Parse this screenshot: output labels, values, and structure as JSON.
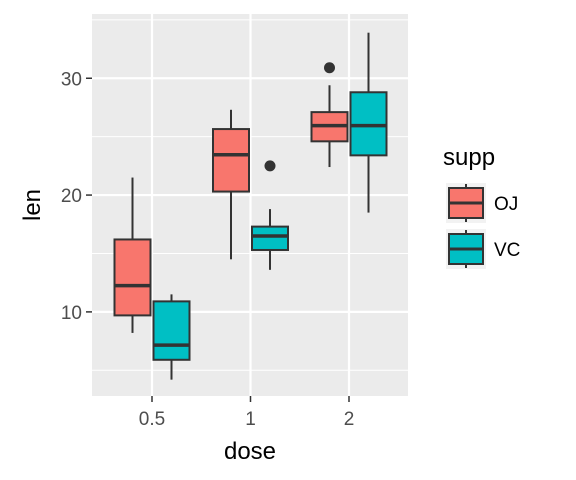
{
  "chart_data": {
    "type": "boxplot",
    "title": "",
    "xlabel": "dose",
    "ylabel": "len",
    "categories": [
      "0.5",
      "1",
      "2"
    ],
    "ylim": [
      2.8,
      35.5
    ],
    "y_ticks": [
      10,
      20,
      30
    ],
    "grid": true,
    "legend": {
      "title": "supp",
      "position": "right"
    },
    "series": [
      {
        "name": "OJ",
        "color": "#F8766D",
        "boxes": [
          {
            "category": "0.5",
            "min": 8.2,
            "q1": 9.7,
            "median": 12.25,
            "q3": 16.2,
            "max": 21.5,
            "outliers": []
          },
          {
            "category": "1",
            "min": 14.5,
            "q1": 20.3,
            "median": 23.45,
            "q3": 25.65,
            "max": 27.3,
            "outliers": []
          },
          {
            "category": "2",
            "min": 22.4,
            "q1": 24.6,
            "median": 25.95,
            "q3": 27.1,
            "max": 29.4,
            "outliers": [
              30.9
            ]
          }
        ]
      },
      {
        "name": "VC",
        "color": "#00BFC4",
        "boxes": [
          {
            "category": "0.5",
            "min": 4.2,
            "q1": 5.9,
            "median": 7.15,
            "q3": 10.9,
            "max": 11.5,
            "outliers": []
          },
          {
            "category": "1",
            "min": 13.6,
            "q1": 15.3,
            "median": 16.5,
            "q3": 17.3,
            "max": 18.8,
            "outliers": [
              22.5
            ]
          },
          {
            "category": "2",
            "min": 18.5,
            "q1": 23.4,
            "median": 25.95,
            "q3": 28.8,
            "max": 33.9,
            "outliers": []
          }
        ]
      }
    ]
  }
}
